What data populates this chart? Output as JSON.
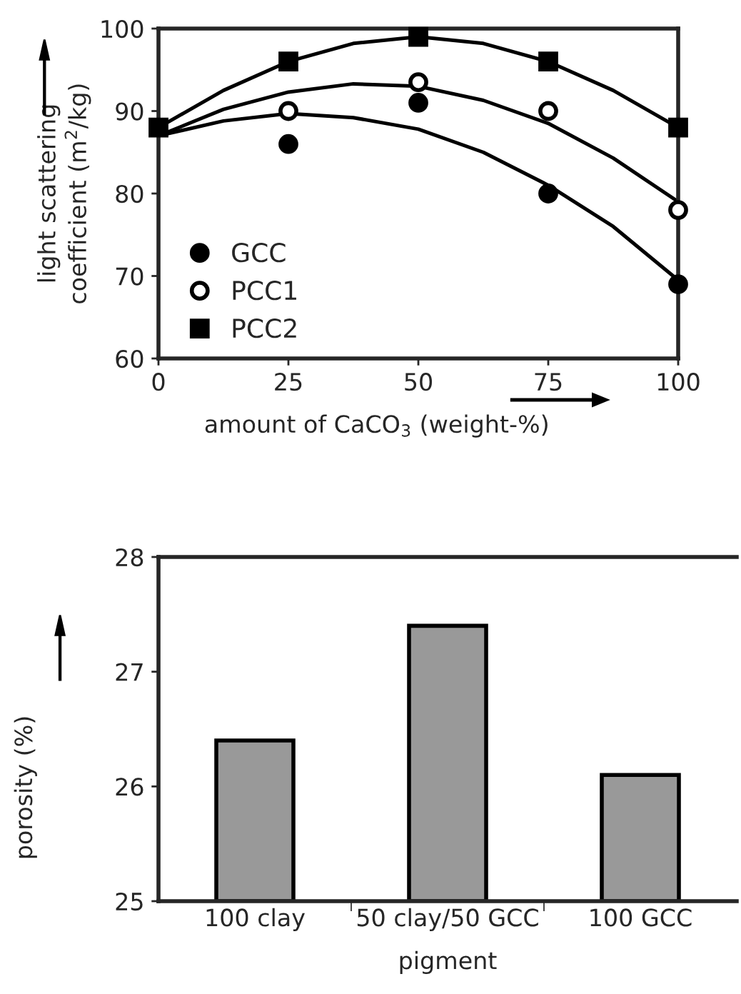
{
  "chart_data": [
    {
      "type": "scatter",
      "xlabel": "amount of CaCO$_{3}$ (weight-%)",
      "ylabel": "light scattering\ncoefficient (m$^{2}$/kg)",
      "x": [
        0,
        25,
        50,
        75,
        100
      ],
      "xlim": [
        0,
        100
      ],
      "xticks": [
        0,
        25,
        50,
        75,
        100
      ],
      "ylim": [
        60,
        100
      ],
      "yticks": [
        60,
        70,
        80,
        90,
        100
      ],
      "grid": false,
      "legend": "bottom left",
      "series": [
        {
          "name": "GCC",
          "color": "#000000",
          "marker": "circle",
          "values": [
            null,
            86,
            91,
            80,
            69
          ]
        },
        {
          "name": "PCC1",
          "color": "#ffffff",
          "marker": "circle",
          "values": [
            null,
            90,
            93.5,
            90,
            78
          ]
        },
        {
          "name": "PCC2",
          "color": "#000000",
          "marker": "square",
          "values": [
            88,
            96,
            99,
            96,
            88
          ]
        },
        {
          "type": "line",
          "color": "#000000",
          "line_style": "solid",
          "x": [
            0,
            12.5,
            25,
            37.5,
            50,
            62.5,
            75,
            87.5,
            100
          ],
          "values": [
            87,
            88.8,
            89.7,
            89.2,
            87.8,
            85,
            81,
            76,
            69.5
          ]
        },
        {
          "type": "line",
          "color": "#000000",
          "line_style": "solid",
          "x": [
            0,
            12.5,
            25,
            37.5,
            50,
            62.5,
            75,
            87.5,
            100
          ],
          "values": [
            87,
            90.2,
            92.3,
            93.3,
            93,
            91.3,
            88.5,
            84.3,
            79
          ]
        },
        {
          "type": "line",
          "color": "#000000",
          "line_style": "solid",
          "x": [
            0,
            12.5,
            25,
            37.5,
            50,
            62.5,
            75,
            87.5,
            100
          ],
          "values": [
            88,
            92.5,
            96,
            98.2,
            99,
            98.2,
            96,
            92.5,
            88
          ]
        }
      ]
    },
    {
      "type": "bar",
      "xlabel": "pigment",
      "ylabel": "porosity (%)",
      "categories": [
        "100 clay",
        "50 clay/50 GCC",
        "100 GCC"
      ],
      "values": [
        26.4,
        27.4,
        26.1
      ],
      "color": "#999999",
      "ylim": [
        25,
        28
      ],
      "yticks": [
        25,
        26,
        27,
        28
      ],
      "grid": false
    }
  ]
}
